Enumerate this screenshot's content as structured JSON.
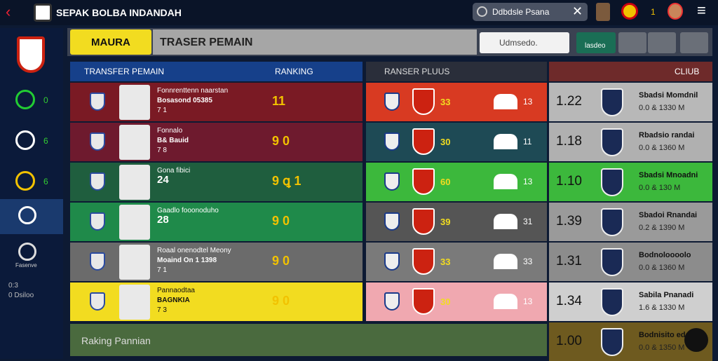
{
  "header": {
    "title": "SEPAK BOLBA INDANDAH",
    "search": "Ddbdsle Psana",
    "count": "1"
  },
  "sidebar": {
    "items": [
      "0",
      "6",
      "6"
    ],
    "caption": "Fasenve",
    "footer": [
      "0:3",
      "0 Dsiloo"
    ]
  },
  "toolbar": {
    "tab": "MAURA",
    "title": "TRASER PEMAIN",
    "select": "Udmsedo.",
    "button": "lasdeo"
  },
  "left_panel": {
    "headers": [
      "TRANSFER PEMAIN",
      "RANKING"
    ],
    "rows": [
      {
        "line1": "Fonnrenttenn naarstan",
        "line2": "Bosasond 05385",
        "line3": "7 1",
        "rank": "11"
      },
      {
        "line1": "Fonnalo",
        "line2": "B& Bauid",
        "line3": "7 8",
        "rank": "9 0"
      },
      {
        "line1": "Gona fibici",
        "line2": "24",
        "rank": "9 ꝗ 1"
      },
      {
        "line1": "Gaadlo fooonoduho",
        "line2": "28",
        "rank": "9 0"
      },
      {
        "line1": "Roaal onenodtel Meony",
        "line2": "Moaind On 1 1398",
        "line3": "7 1",
        "rank": "9 0"
      },
      {
        "line1": "Pannaodtaa",
        "line2": "BAGNKIA",
        "line3": "7 3",
        "rank": "9 0"
      }
    ]
  },
  "middle_panel": {
    "header": "RANSER PLUUS",
    "rows": [
      {
        "a": "33",
        "b": "13"
      },
      {
        "a": "30",
        "b": "11"
      },
      {
        "a": "60",
        "b": "13"
      },
      {
        "a": "39",
        "b": "31"
      },
      {
        "a": "33",
        "b": "33"
      },
      {
        "a": "30",
        "b": "13"
      }
    ]
  },
  "right_panel": {
    "header": "CLIUB",
    "rows": [
      {
        "value": "1.22",
        "name": "Sbadsi Momdnil",
        "sub": "0.0 & 1330 M"
      },
      {
        "value": "1.18",
        "name": "Rbadsio randai",
        "sub": "0.0 & 1360 M"
      },
      {
        "value": "1.10",
        "name": "Sbadsi Mnoadni",
        "sub": "0.0 & 130 M"
      },
      {
        "value": "1.39",
        "name": "Sbadoi Rnandai",
        "sub": "0.2 & 1390 M"
      },
      {
        "value": "1.31",
        "name": "Bodnoloooolo",
        "sub": "0.0 & 1360 M"
      },
      {
        "value": "1.34",
        "name": "Sabila Pnanadi",
        "sub": "1.6 & 1330 M"
      },
      {
        "value": "1.00",
        "name": "Bodnisito eda",
        "sub": "0.0 & 1350 M"
      }
    ]
  },
  "footer": {
    "label": "Raking Pannian"
  }
}
